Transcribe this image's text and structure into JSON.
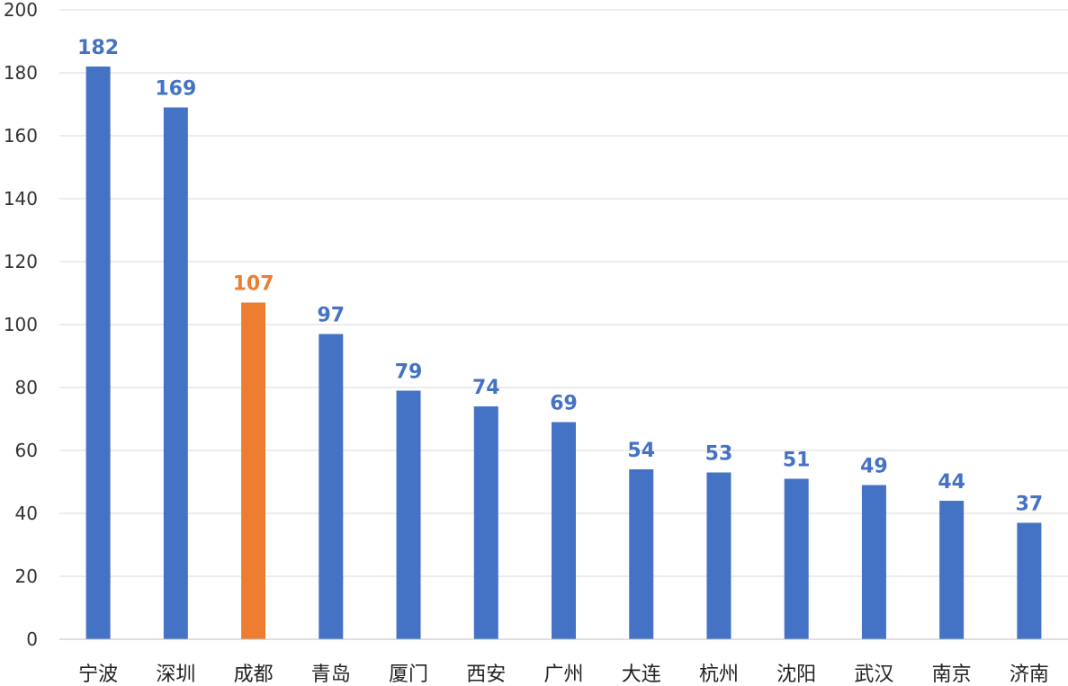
{
  "chart_data": {
    "type": "bar",
    "categories": [
      "宁波",
      "深圳",
      "成都",
      "青岛",
      "厦门",
      "西安",
      "广州",
      "大连",
      "杭州",
      "沈阳",
      "武汉",
      "南京",
      "济南"
    ],
    "values": [
      182,
      169,
      107,
      97,
      79,
      74,
      69,
      54,
      53,
      51,
      49,
      44,
      37
    ],
    "highlight_index": 2,
    "title": "",
    "xlabel": "",
    "ylabel": "",
    "ylim": [
      0,
      200
    ],
    "yticks": [
      0,
      20,
      40,
      60,
      80,
      100,
      120,
      140,
      160,
      180,
      200
    ],
    "grid": true,
    "data_labels": true,
    "colors": {
      "bar": "#4472C4",
      "highlight": "#ED7D31",
      "label": "#4472C4",
      "highlight_label": "#ED7D31"
    }
  }
}
